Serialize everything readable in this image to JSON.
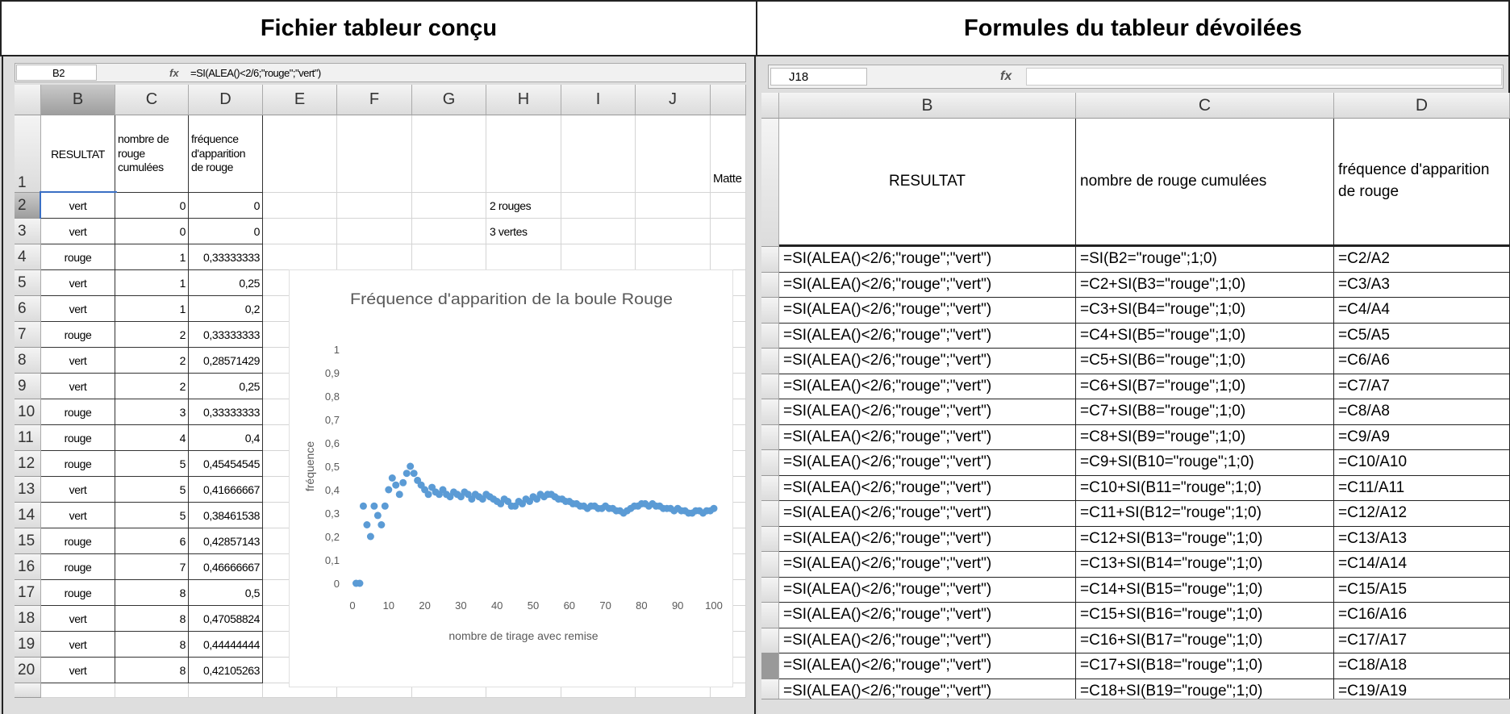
{
  "left_panel": {
    "title": "Fichier tableur conçu",
    "formula_bar": {
      "cell": "B2",
      "fx": "fx",
      "formula": "=SI(ALEA()<2/6;\"rouge\";\"vert\")"
    },
    "columns": [
      "B",
      "C",
      "D",
      "E",
      "F",
      "G",
      "H",
      "I",
      "J"
    ],
    "row_numbers": [
      1,
      2,
      3,
      4,
      5,
      6,
      7,
      8,
      9,
      10,
      11,
      12,
      13,
      14,
      15,
      16,
      17,
      18,
      19,
      20
    ],
    "header": [
      "RESULTAT",
      "nombre de rouge cumulées",
      "fréquence d'apparition de rouge"
    ],
    "rows": [
      [
        "vert",
        "0",
        "0"
      ],
      [
        "vert",
        "0",
        "0"
      ],
      [
        "rouge",
        "1",
        "0,33333333"
      ],
      [
        "vert",
        "1",
        "0,25"
      ],
      [
        "vert",
        "1",
        "0,2"
      ],
      [
        "rouge",
        "2",
        "0,33333333"
      ],
      [
        "vert",
        "2",
        "0,28571429"
      ],
      [
        "vert",
        "2",
        "0,25"
      ],
      [
        "rouge",
        "3",
        "0,33333333"
      ],
      [
        "rouge",
        "4",
        "0,4"
      ],
      [
        "rouge",
        "5",
        "0,45454545"
      ],
      [
        "vert",
        "5",
        "0,41666667"
      ],
      [
        "vert",
        "5",
        "0,38461538"
      ],
      [
        "rouge",
        "6",
        "0,42857143"
      ],
      [
        "rouge",
        "7",
        "0,46666667"
      ],
      [
        "rouge",
        "8",
        "0,5"
      ],
      [
        "vert",
        "8",
        "0,47058824"
      ],
      [
        "vert",
        "8",
        "0,44444444"
      ],
      [
        "vert",
        "8",
        "0,42105263"
      ]
    ],
    "notes": [
      "2 rouges",
      "3 vertes",
      "Matte"
    ],
    "chart": {
      "type": "scatter",
      "title": "Fréquence d'apparition de la boule Rouge",
      "x_label": "nombre de tirage avec remise",
      "y_label": "fréquence",
      "color": "#5b9bd5",
      "xlim": [
        0,
        100
      ],
      "ylim": [
        0,
        1
      ],
      "xticks": [
        0,
        10,
        20,
        30,
        40,
        50,
        60,
        70,
        80,
        90,
        100
      ],
      "yticks": [
        0,
        {
          "value": 0.1,
          "label": "0,1"
        },
        {
          "value": 0.2,
          "label": "0,2"
        },
        {
          "value": 0.3,
          "label": "0,3"
        },
        {
          "value": 0.4,
          "label": "0,4"
        },
        {
          "value": 0.5,
          "label": "0,5"
        },
        {
          "value": 0.6,
          "label": "0,6"
        },
        {
          "value": 0.7,
          "label": "0,7"
        },
        {
          "value": 0.8,
          "label": "0,8"
        },
        {
          "value": 0.9,
          "label": "0,9"
        },
        1
      ],
      "x": [
        1,
        2,
        3,
        4,
        5,
        6,
        7,
        8,
        9,
        10,
        11,
        12,
        13,
        14,
        15,
        16,
        17,
        18,
        19,
        20,
        21,
        22,
        23,
        24,
        25,
        26,
        27,
        28,
        29,
        30,
        31,
        32,
        33,
        34,
        35,
        36,
        37,
        38,
        39,
        40,
        41,
        42,
        43,
        44,
        45,
        46,
        47,
        48,
        49,
        50,
        51,
        52,
        53,
        54,
        55,
        56,
        57,
        58,
        59,
        60,
        61,
        62,
        63,
        64,
        65,
        66,
        67,
        68,
        69,
        70,
        71,
        72,
        73,
        74,
        75,
        76,
        77,
        78,
        79,
        80,
        81,
        82,
        83,
        84,
        85,
        86,
        87,
        88,
        89,
        90,
        91,
        92,
        93,
        94,
        95,
        96,
        97,
        98,
        99,
        100
      ],
      "values": [
        0,
        0,
        0.33,
        0.25,
        0.2,
        0.33,
        0.29,
        0.25,
        0.33,
        0.4,
        0.45,
        0.42,
        0.38,
        0.43,
        0.47,
        0.5,
        0.47,
        0.44,
        0.42,
        0.4,
        0.38,
        0.41,
        0.39,
        0.38,
        0.4,
        0.38,
        0.37,
        0.39,
        0.38,
        0.37,
        0.39,
        0.38,
        0.36,
        0.38,
        0.37,
        0.36,
        0.38,
        0.37,
        0.36,
        0.35,
        0.34,
        0.36,
        0.35,
        0.33,
        0.33,
        0.35,
        0.34,
        0.36,
        0.35,
        0.37,
        0.36,
        0.38,
        0.37,
        0.38,
        0.38,
        0.37,
        0.36,
        0.36,
        0.35,
        0.35,
        0.34,
        0.34,
        0.33,
        0.33,
        0.32,
        0.33,
        0.33,
        0.32,
        0.32,
        0.33,
        0.32,
        0.32,
        0.31,
        0.31,
        0.3,
        0.31,
        0.32,
        0.33,
        0.33,
        0.34,
        0.34,
        0.33,
        0.34,
        0.33,
        0.33,
        0.32,
        0.32,
        0.32,
        0.31,
        0.32,
        0.31,
        0.31,
        0.3,
        0.3,
        0.31,
        0.31,
        0.3,
        0.31,
        0.31,
        0.32
      ]
    }
  },
  "right_panel": {
    "title": "Formules du tableur dévoilées",
    "formula_bar": {
      "cell": "J18",
      "fx": "fx"
    },
    "columns": [
      "B",
      "C",
      "D"
    ],
    "header": [
      "RESULTAT",
      "nombre de rouge cumulées",
      "fréquence d'apparition de rouge"
    ],
    "rows": [
      [
        "=SI(ALEA()<2/6;\"rouge\";\"vert\")",
        "=SI(B2=\"rouge\";1;0)",
        "=C2/A2"
      ],
      [
        "=SI(ALEA()<2/6;\"rouge\";\"vert\")",
        "=C2+SI(B3=\"rouge\";1;0)",
        "=C3/A3"
      ],
      [
        "=SI(ALEA()<2/6;\"rouge\";\"vert\")",
        "=C3+SI(B4=\"rouge\";1;0)",
        "=C4/A4"
      ],
      [
        "=SI(ALEA()<2/6;\"rouge\";\"vert\")",
        "=C4+SI(B5=\"rouge\";1;0)",
        "=C5/A5"
      ],
      [
        "=SI(ALEA()<2/6;\"rouge\";\"vert\")",
        "=C5+SI(B6=\"rouge\";1;0)",
        "=C6/A6"
      ],
      [
        "=SI(ALEA()<2/6;\"rouge\";\"vert\")",
        "=C6+SI(B7=\"rouge\";1;0)",
        "=C7/A7"
      ],
      [
        "=SI(ALEA()<2/6;\"rouge\";\"vert\")",
        "=C7+SI(B8=\"rouge\";1;0)",
        "=C8/A8"
      ],
      [
        "=SI(ALEA()<2/6;\"rouge\";\"vert\")",
        "=C8+SI(B9=\"rouge\";1;0)",
        "=C9/A9"
      ],
      [
        "=SI(ALEA()<2/6;\"rouge\";\"vert\")",
        "=C9+SI(B10=\"rouge\";1;0)",
        "=C10/A10"
      ],
      [
        "=SI(ALEA()<2/6;\"rouge\";\"vert\")",
        "=C10+SI(B11=\"rouge\";1;0)",
        "=C11/A11"
      ],
      [
        "=SI(ALEA()<2/6;\"rouge\";\"vert\")",
        "=C11+SI(B12=\"rouge\";1;0)",
        "=C12/A12"
      ],
      [
        "=SI(ALEA()<2/6;\"rouge\";\"vert\")",
        "=C12+SI(B13=\"rouge\";1;0)",
        "=C13/A13"
      ],
      [
        "=SI(ALEA()<2/6;\"rouge\";\"vert\")",
        "=C13+SI(B14=\"rouge\";1;0)",
        "=C14/A14"
      ],
      [
        "=SI(ALEA()<2/6;\"rouge\";\"vert\")",
        "=C14+SI(B15=\"rouge\";1;0)",
        "=C15/A15"
      ],
      [
        "=SI(ALEA()<2/6;\"rouge\";\"vert\")",
        "=C15+SI(B16=\"rouge\";1;0)",
        "=C16/A16"
      ],
      [
        "=SI(ALEA()<2/6;\"rouge\";\"vert\")",
        "=C16+SI(B17=\"rouge\";1;0)",
        "=C17/A17"
      ],
      [
        "=SI(ALEA()<2/6;\"rouge\";\"vert\")",
        "=C17+SI(B18=\"rouge\";1;0)",
        "=C18/A18"
      ],
      [
        "=SI(ALEA()<2/6;\"rouge\";\"vert\")",
        "=C18+SI(B19=\"rouge\";1;0)",
        "=C19/A19"
      ]
    ]
  }
}
